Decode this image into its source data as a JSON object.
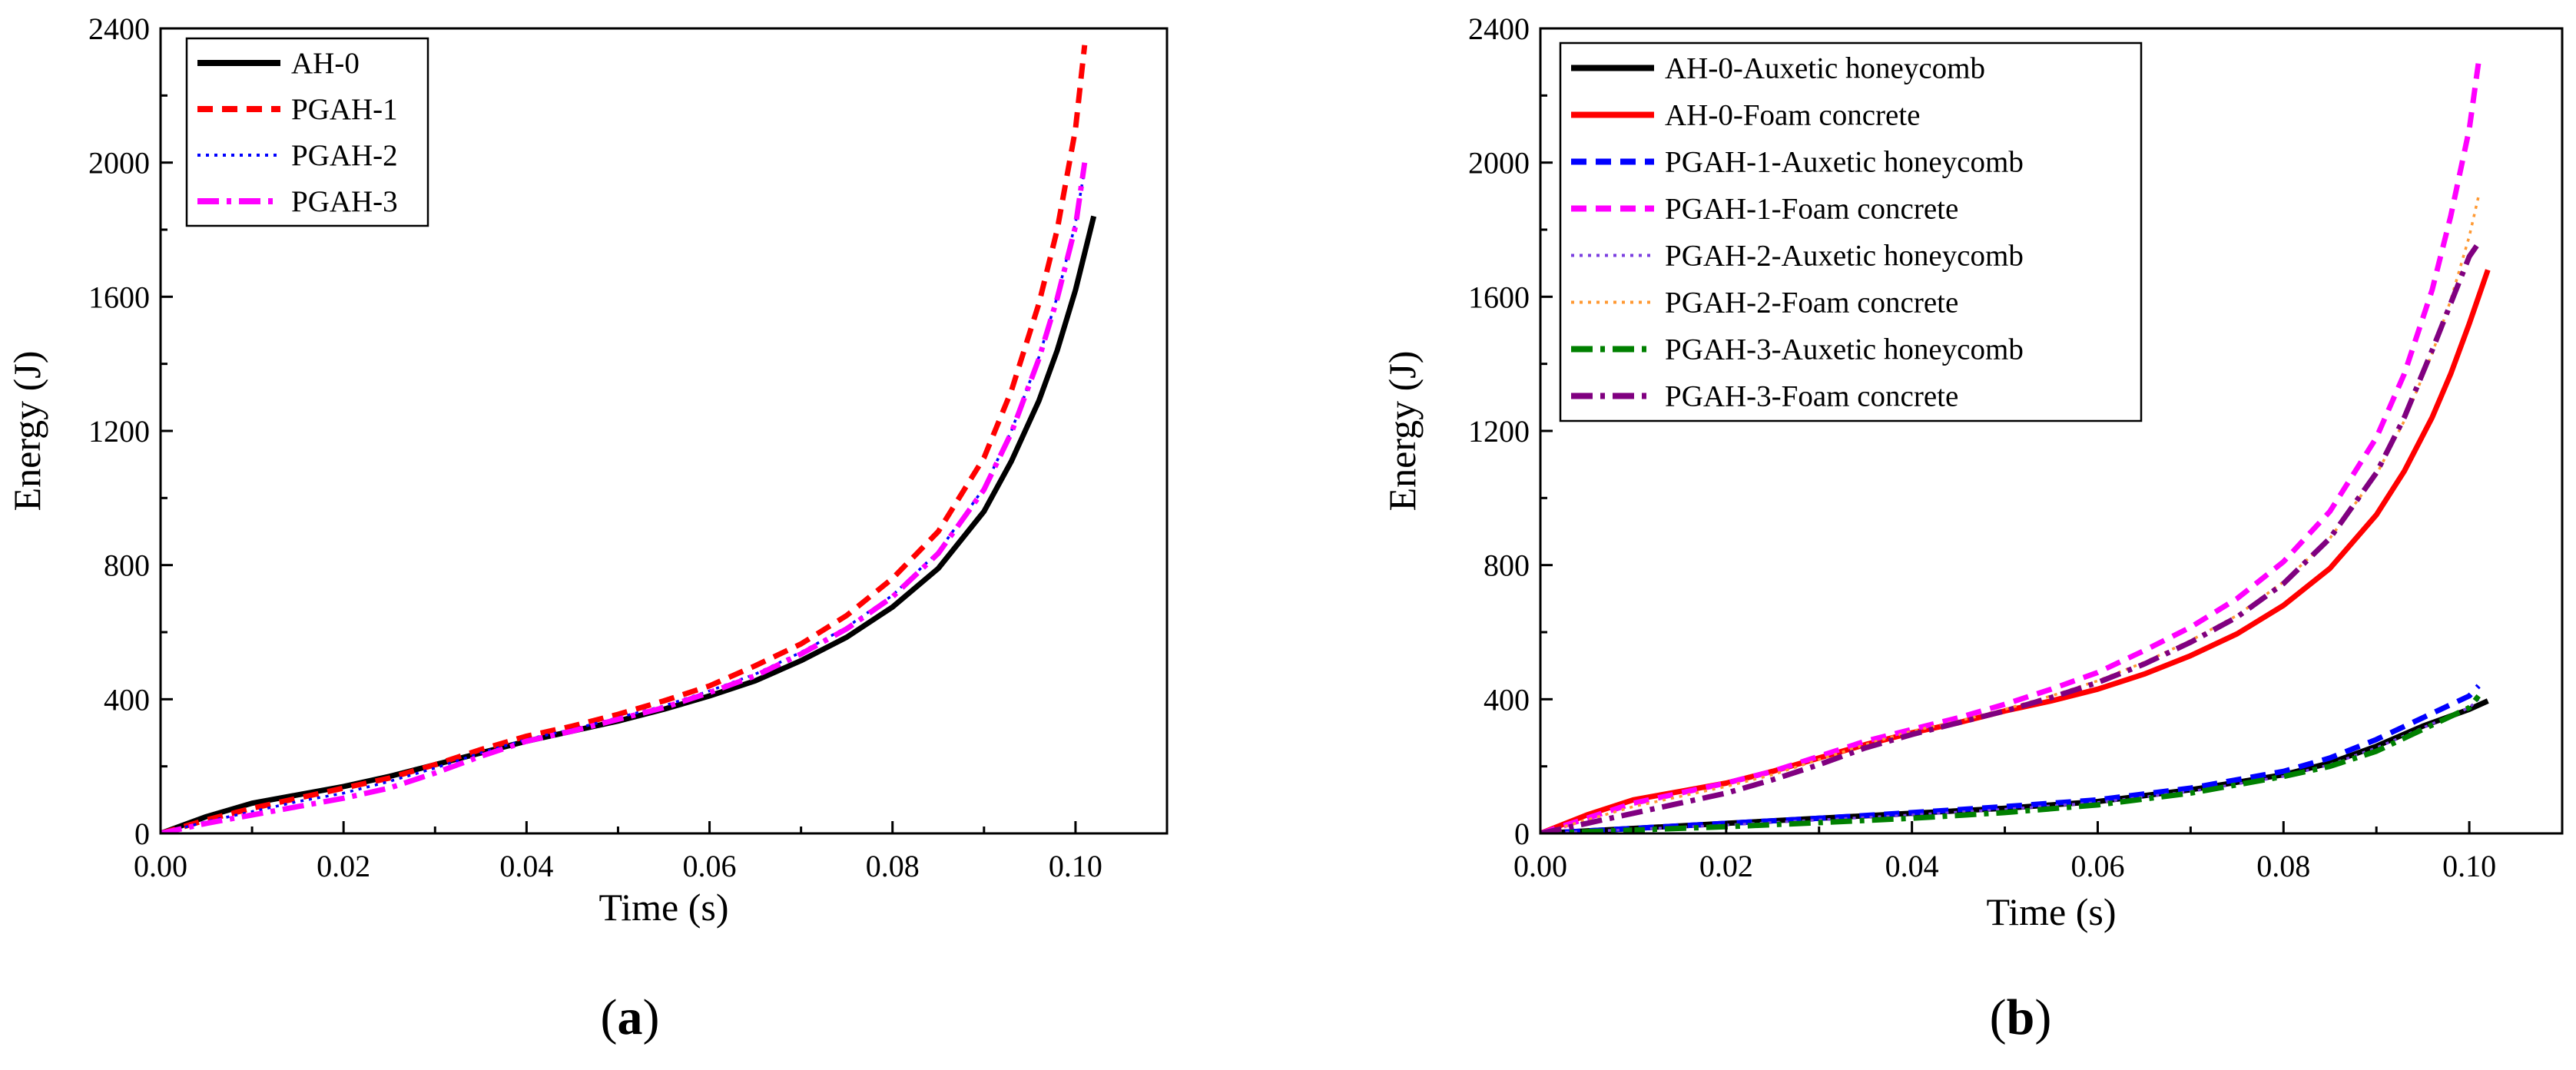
{
  "chart_data": [
    {
      "type": "line",
      "panel_label": "(a)",
      "panel_label_parts": {
        "open": "(",
        "letter": "a",
        "close": ")"
      },
      "xlabel": "Time (s)",
      "ylabel": "Energy (J)",
      "xlim": [
        0,
        0.11
      ],
      "ylim": [
        0,
        2400
      ],
      "xticks": [
        0.0,
        0.02,
        0.04,
        0.06,
        0.08,
        0.1
      ],
      "xtick_labels": [
        "0.00",
        "0.02",
        "0.04",
        "0.06",
        "0.08",
        "0.10"
      ],
      "yticks": [
        0,
        400,
        800,
        1200,
        1600,
        2000,
        2400
      ],
      "ytick_labels": [
        "0",
        "400",
        "800",
        "1200",
        "1600",
        "2000",
        "2400"
      ],
      "legend_position": "top-left",
      "series": [
        {
          "name": "AH-0",
          "color": "#000000",
          "style": "solid",
          "x": [
            0,
            0.005,
            0.01,
            0.015,
            0.02,
            0.025,
            0.03,
            0.035,
            0.04,
            0.045,
            0.05,
            0.055,
            0.06,
            0.065,
            0.07,
            0.075,
            0.08,
            0.085,
            0.09,
            0.093,
            0.096,
            0.098,
            0.1,
            0.101,
            0.102
          ],
          "y": [
            0,
            50,
            90,
            115,
            140,
            170,
            205,
            240,
            275,
            305,
            335,
            370,
            410,
            455,
            515,
            585,
            675,
            790,
            960,
            1110,
            1290,
            1440,
            1620,
            1730,
            1840
          ]
        },
        {
          "name": "PGAH-1",
          "color": "#ff0000",
          "style": "dash",
          "x": [
            0,
            0.005,
            0.01,
            0.015,
            0.02,
            0.025,
            0.03,
            0.035,
            0.04,
            0.045,
            0.05,
            0.055,
            0.06,
            0.065,
            0.07,
            0.075,
            0.08,
            0.085,
            0.09,
            0.093,
            0.096,
            0.098,
            0.1,
            0.101
          ],
          "y": [
            0,
            40,
            75,
            105,
            135,
            165,
            205,
            250,
            290,
            320,
            355,
            395,
            440,
            500,
            565,
            650,
            760,
            900,
            1120,
            1320,
            1580,
            1800,
            2100,
            2350
          ]
        },
        {
          "name": "PGAH-2",
          "color": "#0000ff",
          "style": "dot",
          "x": [
            0,
            0.005,
            0.01,
            0.015,
            0.02,
            0.025,
            0.03,
            0.035,
            0.04,
            0.045,
            0.05,
            0.055,
            0.06,
            0.065,
            0.07,
            0.075,
            0.08,
            0.085,
            0.09,
            0.093,
            0.096,
            0.098,
            0.1,
            0.101
          ],
          "y": [
            0,
            35,
            65,
            95,
            120,
            155,
            195,
            240,
            280,
            310,
            345,
            380,
            425,
            475,
            540,
            615,
            710,
            840,
            1030,
            1200,
            1420,
            1600,
            1820,
            1980
          ]
        },
        {
          "name": "PGAH-3",
          "color": "#ff00ff",
          "style": "dashdot",
          "x": [
            0,
            0.005,
            0.01,
            0.015,
            0.02,
            0.025,
            0.03,
            0.035,
            0.04,
            0.045,
            0.05,
            0.055,
            0.06,
            0.065,
            0.07,
            0.075,
            0.08,
            0.085,
            0.09,
            0.093,
            0.096,
            0.098,
            0.1,
            0.101
          ],
          "y": [
            0,
            30,
            55,
            80,
            105,
            135,
            180,
            230,
            275,
            305,
            340,
            375,
            420,
            470,
            535,
            610,
            705,
            835,
            1025,
            1195,
            1415,
            1595,
            1810,
            2000
          ]
        }
      ]
    },
    {
      "type": "line",
      "panel_label": "(b)",
      "panel_label_parts": {
        "open": "(",
        "letter": "b",
        "close": ")"
      },
      "xlabel": "Time (s)",
      "ylabel": "Energy (J)",
      "xlim": [
        0,
        0.11
      ],
      "ylim": [
        0,
        2400
      ],
      "xticks": [
        0.0,
        0.02,
        0.04,
        0.06,
        0.08,
        0.1
      ],
      "xtick_labels": [
        "0.00",
        "0.02",
        "0.04",
        "0.06",
        "0.08",
        "0.10"
      ],
      "yticks": [
        0,
        400,
        800,
        1200,
        1600,
        2000,
        2400
      ],
      "ytick_labels": [
        "0",
        "400",
        "800",
        "1200",
        "1600",
        "2000",
        "2400"
      ],
      "legend_position": "top-left",
      "series": [
        {
          "name": "AH-0-Auxetic honeycomb",
          "color": "#000000",
          "style": "solid",
          "x": [
            0,
            0.01,
            0.02,
            0.03,
            0.04,
            0.05,
            0.06,
            0.07,
            0.08,
            0.085,
            0.09,
            0.095,
            0.1,
            0.102
          ],
          "y": [
            0,
            15,
            30,
            45,
            60,
            75,
            95,
            130,
            175,
            210,
            260,
            320,
            370,
            395
          ]
        },
        {
          "name": "AH-0-Foam concrete",
          "color": "#ff0000",
          "style": "solid",
          "x": [
            0,
            0.005,
            0.01,
            0.015,
            0.02,
            0.025,
            0.03,
            0.035,
            0.04,
            0.045,
            0.05,
            0.055,
            0.06,
            0.065,
            0.07,
            0.075,
            0.08,
            0.085,
            0.09,
            0.093,
            0.096,
            0.098,
            0.1,
            0.101,
            0.102
          ],
          "y": [
            0,
            55,
            100,
            125,
            150,
            185,
            225,
            265,
            300,
            330,
            365,
            395,
            430,
            475,
            530,
            595,
            680,
            790,
            950,
            1080,
            1240,
            1370,
            1520,
            1600,
            1680
          ]
        },
        {
          "name": "PGAH-1-Auxetic honeycomb",
          "color": "#0000ff",
          "style": "dash",
          "x": [
            0,
            0.01,
            0.02,
            0.03,
            0.04,
            0.05,
            0.06,
            0.07,
            0.08,
            0.085,
            0.09,
            0.095,
            0.1,
            0.101
          ],
          "y": [
            0,
            15,
            30,
            45,
            62,
            80,
            100,
            135,
            185,
            225,
            280,
            345,
            410,
            440
          ]
        },
        {
          "name": "PGAH-1-Foam concrete",
          "color": "#ff00ff",
          "style": "dash",
          "x": [
            0,
            0.005,
            0.01,
            0.015,
            0.02,
            0.025,
            0.03,
            0.035,
            0.04,
            0.045,
            0.05,
            0.055,
            0.06,
            0.065,
            0.07,
            0.075,
            0.08,
            0.085,
            0.09,
            0.093,
            0.096,
            0.098,
            0.1,
            0.101
          ],
          "y": [
            0,
            45,
            90,
            120,
            150,
            185,
            230,
            275,
            310,
            345,
            385,
            430,
            480,
            545,
            615,
            700,
            810,
            960,
            1180,
            1370,
            1620,
            1840,
            2100,
            2300
          ]
        },
        {
          "name": "PGAH-2-Auxetic honeycomb",
          "color": "#7b3fe0",
          "style": "dot",
          "x": [
            0,
            0.01,
            0.02,
            0.03,
            0.04,
            0.05,
            0.06,
            0.07,
            0.08,
            0.085,
            0.09,
            0.095,
            0.1,
            0.101
          ],
          "y": [
            0,
            12,
            25,
            40,
            55,
            72,
            92,
            125,
            170,
            205,
            255,
            315,
            375,
            400
          ]
        },
        {
          "name": "PGAH-2-Foam concrete",
          "color": "#ff9933",
          "style": "dot",
          "x": [
            0,
            0.005,
            0.01,
            0.015,
            0.02,
            0.025,
            0.03,
            0.035,
            0.04,
            0.045,
            0.05,
            0.055,
            0.06,
            0.065,
            0.07,
            0.075,
            0.08,
            0.085,
            0.09,
            0.093,
            0.096,
            0.098,
            0.1,
            0.101
          ],
          "y": [
            0,
            40,
            80,
            110,
            140,
            175,
            220,
            265,
            305,
            335,
            370,
            410,
            455,
            510,
            575,
            650,
            750,
            880,
            1070,
            1230,
            1430,
            1590,
            1780,
            1900
          ]
        },
        {
          "name": "PGAH-3-Auxetic honeycomb",
          "color": "#008000",
          "style": "dashdot",
          "x": [
            0,
            0.01,
            0.02,
            0.03,
            0.04,
            0.05,
            0.06,
            0.07,
            0.08,
            0.085,
            0.09,
            0.095,
            0.1,
            0.101
          ],
          "y": [
            0,
            10,
            20,
            32,
            45,
            62,
            85,
            120,
            170,
            200,
            245,
            310,
            375,
            410
          ]
        },
        {
          "name": "PGAH-3-Foam concrete",
          "color": "#800080",
          "style": "dashdot",
          "x": [
            0,
            0.005,
            0.01,
            0.015,
            0.02,
            0.025,
            0.03,
            0.035,
            0.04,
            0.045,
            0.05,
            0.055,
            0.06,
            0.065,
            0.07,
            0.075,
            0.08,
            0.085,
            0.09,
            0.093,
            0.096,
            0.098,
            0.1,
            0.101
          ],
          "y": [
            0,
            30,
            60,
            90,
            120,
            160,
            205,
            255,
            295,
            330,
            365,
            405,
            450,
            505,
            570,
            645,
            745,
            880,
            1075,
            1240,
            1440,
            1580,
            1720,
            1760
          ]
        }
      ]
    }
  ]
}
